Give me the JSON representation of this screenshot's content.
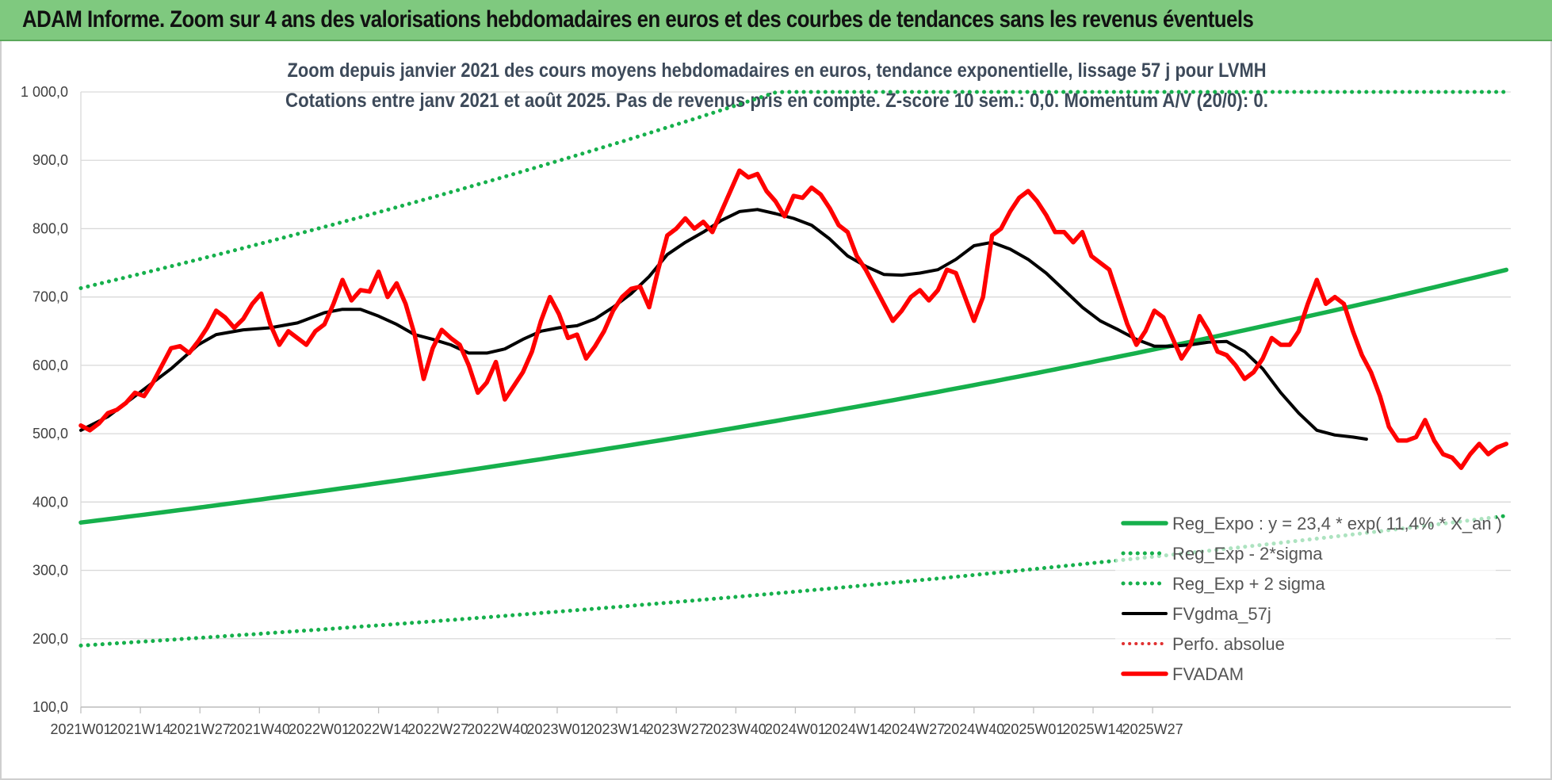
{
  "banner": {
    "title": "ADAM Informe. Zoom sur 4 ans des valorisations hebdomadaires en euros et des courbes de tendances sans les revenus éventuels"
  },
  "colors": {
    "banner_bg": "#7fc97f",
    "trend_green": "#16b04c",
    "fvadam_red": "#ff0000",
    "fvgdma_black": "#000000",
    "perfo_red": "#e03030"
  },
  "chart_data": {
    "type": "line",
    "title_lines": [
      "Zoom depuis janvier 2021 des cours moyens hebdomadaires en euros, tendance exponentielle, lissage 57 j pour LVMH",
      "Cotations entre janv 2021 et août 2025.  Pas de revenus pris en compte. Z-score 10 sem.: 0,0. Momentum A/V (20/0): 0."
    ],
    "ylim": [
      100,
      1000
    ],
    "yticks": [
      "1 000,0",
      "900,0",
      "800,0",
      "700,0",
      "600,0",
      "500,0",
      "400,0",
      "300,0",
      "200,0",
      "100,0"
    ],
    "xlabels": [
      "2021W01",
      "2021W14",
      "2021W27",
      "2021W40",
      "2022W01",
      "2022W14",
      "2022W27",
      "2022W40",
      "2023W01",
      "2023W14",
      "2023W27",
      "2023W40",
      "2024W01",
      "2024W14",
      "2024W27",
      "2024W40",
      "2025W01",
      "2025W14",
      "2025W27"
    ],
    "x_range_weeks": [
      0,
      235
    ],
    "grid": true,
    "legend_position": "bottom-right",
    "regression": {
      "start": 370,
      "growth_pct_per_year": 11.4,
      "lower_start": 190,
      "upper_start": 713
    },
    "series": [
      {
        "name": "Reg_Expo : y = 23,4 * exp( 11,4% *  X_an )",
        "style": "solid-green",
        "points": [
          [
            0,
            370
          ],
          [
            235,
            623
          ]
        ]
      },
      {
        "name": "Reg_Exp - 2*sigma",
        "style": "dotted-green",
        "points": [
          [
            0,
            190
          ],
          [
            235,
            322
          ]
        ]
      },
      {
        "name": "Reg_Exp + 2 sigma",
        "style": "dotted-green",
        "points": [
          [
            0,
            713
          ],
          [
            235,
            1000
          ]
        ]
      },
      {
        "name": "FVgdma_57j",
        "style": "solid-black",
        "points": [
          [
            0,
            505
          ],
          [
            6,
            525
          ],
          [
            13,
            560
          ],
          [
            20,
            595
          ],
          [
            26,
            630
          ],
          [
            30,
            645
          ],
          [
            36,
            652
          ],
          [
            42,
            655
          ],
          [
            48,
            662
          ],
          [
            54,
            677
          ],
          [
            58,
            682
          ],
          [
            62,
            682
          ],
          [
            66,
            672
          ],
          [
            70,
            660
          ],
          [
            74,
            645
          ],
          [
            78,
            638
          ],
          [
            82,
            630
          ],
          [
            86,
            618
          ],
          [
            90,
            618
          ],
          [
            94,
            624
          ],
          [
            98,
            638
          ],
          [
            102,
            650
          ],
          [
            106,
            655
          ],
          [
            110,
            658
          ],
          [
            114,
            668
          ],
          [
            118,
            685
          ],
          [
            122,
            705
          ],
          [
            126,
            730
          ],
          [
            130,
            762
          ],
          [
            134,
            780
          ],
          [
            138,
            795
          ],
          [
            142,
            812
          ],
          [
            146,
            825
          ],
          [
            150,
            828
          ],
          [
            154,
            822
          ],
          [
            158,
            815
          ],
          [
            162,
            805
          ],
          [
            166,
            785
          ],
          [
            170,
            760
          ],
          [
            174,
            745
          ],
          [
            178,
            733
          ],
          [
            182,
            732
          ],
          [
            186,
            735
          ],
          [
            190,
            740
          ],
          [
            194,
            755
          ],
          [
            198,
            775
          ],
          [
            202,
            780
          ],
          [
            206,
            770
          ],
          [
            210,
            755
          ],
          [
            214,
            735
          ],
          [
            218,
            710
          ],
          [
            222,
            685
          ],
          [
            226,
            665
          ],
          [
            230,
            652
          ],
          [
            234,
            638
          ],
          [
            238,
            628
          ],
          [
            242,
            628
          ],
          [
            246,
            630
          ],
          [
            250,
            634
          ],
          [
            254,
            635
          ],
          [
            258,
            620
          ],
          [
            262,
            595
          ],
          [
            266,
            560
          ],
          [
            270,
            530
          ],
          [
            274,
            505
          ],
          [
            278,
            498
          ],
          [
            282,
            495
          ],
          [
            285,
            492
          ]
        ]
      },
      {
        "name": "Perfo. absolue",
        "style": "dotted-red",
        "points": []
      },
      {
        "name": "FVADAM",
        "style": "solid-red",
        "points": [
          [
            0,
            512
          ],
          [
            2,
            505
          ],
          [
            4,
            515
          ],
          [
            6,
            530
          ],
          [
            8,
            535
          ],
          [
            10,
            545
          ],
          [
            12,
            560
          ],
          [
            14,
            555
          ],
          [
            16,
            575
          ],
          [
            18,
            600
          ],
          [
            20,
            625
          ],
          [
            22,
            628
          ],
          [
            24,
            618
          ],
          [
            26,
            635
          ],
          [
            28,
            655
          ],
          [
            30,
            680
          ],
          [
            32,
            670
          ],
          [
            34,
            655
          ],
          [
            36,
            668
          ],
          [
            38,
            690
          ],
          [
            40,
            705
          ],
          [
            42,
            660
          ],
          [
            44,
            630
          ],
          [
            46,
            650
          ],
          [
            48,
            640
          ],
          [
            50,
            630
          ],
          [
            52,
            650
          ],
          [
            54,
            660
          ],
          [
            56,
            690
          ],
          [
            58,
            725
          ],
          [
            60,
            695
          ],
          [
            62,
            710
          ],
          [
            64,
            708
          ],
          [
            66,
            737
          ],
          [
            68,
            700
          ],
          [
            70,
            720
          ],
          [
            72,
            690
          ],
          [
            74,
            645
          ],
          [
            76,
            580
          ],
          [
            78,
            625
          ],
          [
            80,
            652
          ],
          [
            82,
            640
          ],
          [
            84,
            630
          ],
          [
            86,
            600
          ],
          [
            88,
            560
          ],
          [
            90,
            575
          ],
          [
            92,
            605
          ],
          [
            94,
            550
          ],
          [
            96,
            570
          ],
          [
            98,
            590
          ],
          [
            100,
            620
          ],
          [
            102,
            665
          ],
          [
            104,
            700
          ],
          [
            106,
            675
          ],
          [
            108,
            640
          ],
          [
            110,
            645
          ],
          [
            112,
            610
          ],
          [
            114,
            628
          ],
          [
            116,
            650
          ],
          [
            118,
            680
          ],
          [
            120,
            700
          ],
          [
            122,
            712
          ],
          [
            124,
            715
          ],
          [
            126,
            685
          ],
          [
            128,
            740
          ],
          [
            130,
            790
          ],
          [
            132,
            800
          ],
          [
            134,
            815
          ],
          [
            136,
            800
          ],
          [
            138,
            810
          ],
          [
            140,
            795
          ],
          [
            142,
            825
          ],
          [
            144,
            855
          ],
          [
            146,
            885
          ],
          [
            148,
            875
          ],
          [
            150,
            880
          ],
          [
            152,
            855
          ],
          [
            154,
            840
          ],
          [
            156,
            818
          ],
          [
            158,
            848
          ],
          [
            160,
            845
          ],
          [
            162,
            860
          ],
          [
            164,
            850
          ],
          [
            166,
            830
          ],
          [
            168,
            805
          ],
          [
            170,
            795
          ],
          [
            172,
            760
          ],
          [
            174,
            740
          ],
          [
            176,
            715
          ],
          [
            178,
            690
          ],
          [
            180,
            665
          ],
          [
            182,
            680
          ],
          [
            184,
            700
          ],
          [
            186,
            710
          ],
          [
            188,
            695
          ],
          [
            190,
            710
          ],
          [
            192,
            740
          ],
          [
            194,
            735
          ],
          [
            196,
            700
          ],
          [
            198,
            665
          ],
          [
            200,
            700
          ],
          [
            202,
            790
          ],
          [
            204,
            800
          ],
          [
            206,
            825
          ],
          [
            208,
            845
          ],
          [
            210,
            855
          ],
          [
            212,
            840
          ],
          [
            214,
            820
          ],
          [
            216,
            795
          ],
          [
            218,
            795
          ],
          [
            220,
            780
          ],
          [
            222,
            795
          ],
          [
            224,
            760
          ],
          [
            226,
            750
          ],
          [
            228,
            740
          ],
          [
            230,
            700
          ],
          [
            232,
            660
          ],
          [
            234,
            630
          ],
          [
            236,
            650
          ],
          [
            238,
            680
          ],
          [
            240,
            670
          ],
          [
            242,
            640
          ],
          [
            244,
            610
          ],
          [
            246,
            630
          ],
          [
            248,
            672
          ],
          [
            250,
            650
          ],
          [
            252,
            620
          ],
          [
            254,
            615
          ],
          [
            256,
            600
          ],
          [
            258,
            580
          ],
          [
            260,
            590
          ],
          [
            262,
            610
          ],
          [
            264,
            640
          ],
          [
            266,
            630
          ],
          [
            268,
            630
          ],
          [
            270,
            650
          ],
          [
            272,
            690
          ],
          [
            274,
            725
          ],
          [
            276,
            690
          ],
          [
            278,
            700
          ],
          [
            280,
            690
          ],
          [
            282,
            650
          ],
          [
            284,
            615
          ],
          [
            286,
            590
          ],
          [
            288,
            555
          ],
          [
            290,
            510
          ],
          [
            292,
            490
          ],
          [
            294,
            490
          ],
          [
            296,
            495
          ],
          [
            298,
            520
          ],
          [
            300,
            490
          ],
          [
            302,
            470
          ],
          [
            304,
            465
          ],
          [
            306,
            450
          ],
          [
            308,
            470
          ],
          [
            310,
            485
          ],
          [
            312,
            470
          ],
          [
            314,
            480
          ],
          [
            316,
            485
          ]
        ]
      }
    ]
  }
}
